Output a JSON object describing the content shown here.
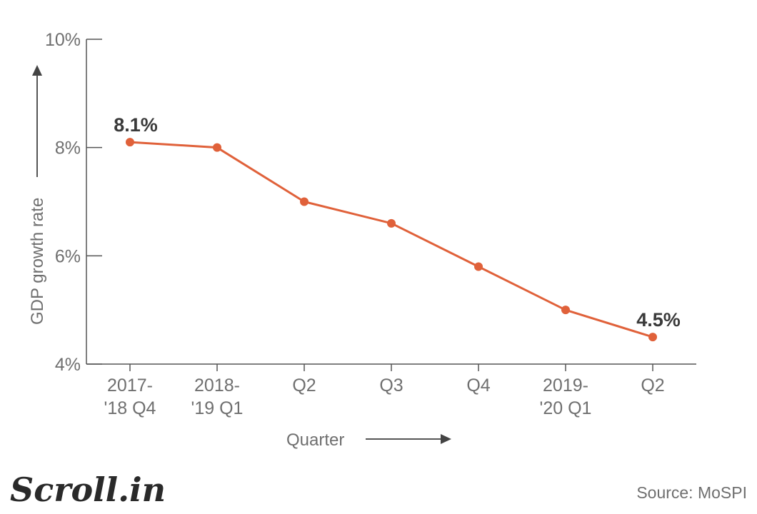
{
  "chart_data": {
    "type": "line",
    "title": "",
    "xlabel": "Quarter",
    "ylabel": "GDP growth rate",
    "categories": [
      [
        "2017-",
        "'18 Q4"
      ],
      [
        "2018-",
        "'19 Q1"
      ],
      [
        "Q2"
      ],
      [
        "Q3"
      ],
      [
        "Q4"
      ],
      [
        "2019-",
        "'20 Q1"
      ],
      [
        "Q2"
      ]
    ],
    "series": [
      {
        "name": "GDP growth rate",
        "values": [
          8.1,
          8.0,
          7.0,
          6.6,
          5.8,
          5.0,
          4.5
        ]
      }
    ],
    "data_labels": [
      {
        "index": 0,
        "text": "8.1%"
      },
      {
        "index": 6,
        "text": "4.5%"
      }
    ],
    "ylim": [
      4,
      10
    ],
    "yticks": [
      4,
      6,
      8,
      10
    ],
    "ytick_labels": [
      "4%",
      "6%",
      "8%",
      "10%"
    ],
    "line_color": "#e0613a",
    "grid": false
  },
  "brand": {
    "logo": "Scroll.in"
  },
  "source": "Source:  MoSPI"
}
